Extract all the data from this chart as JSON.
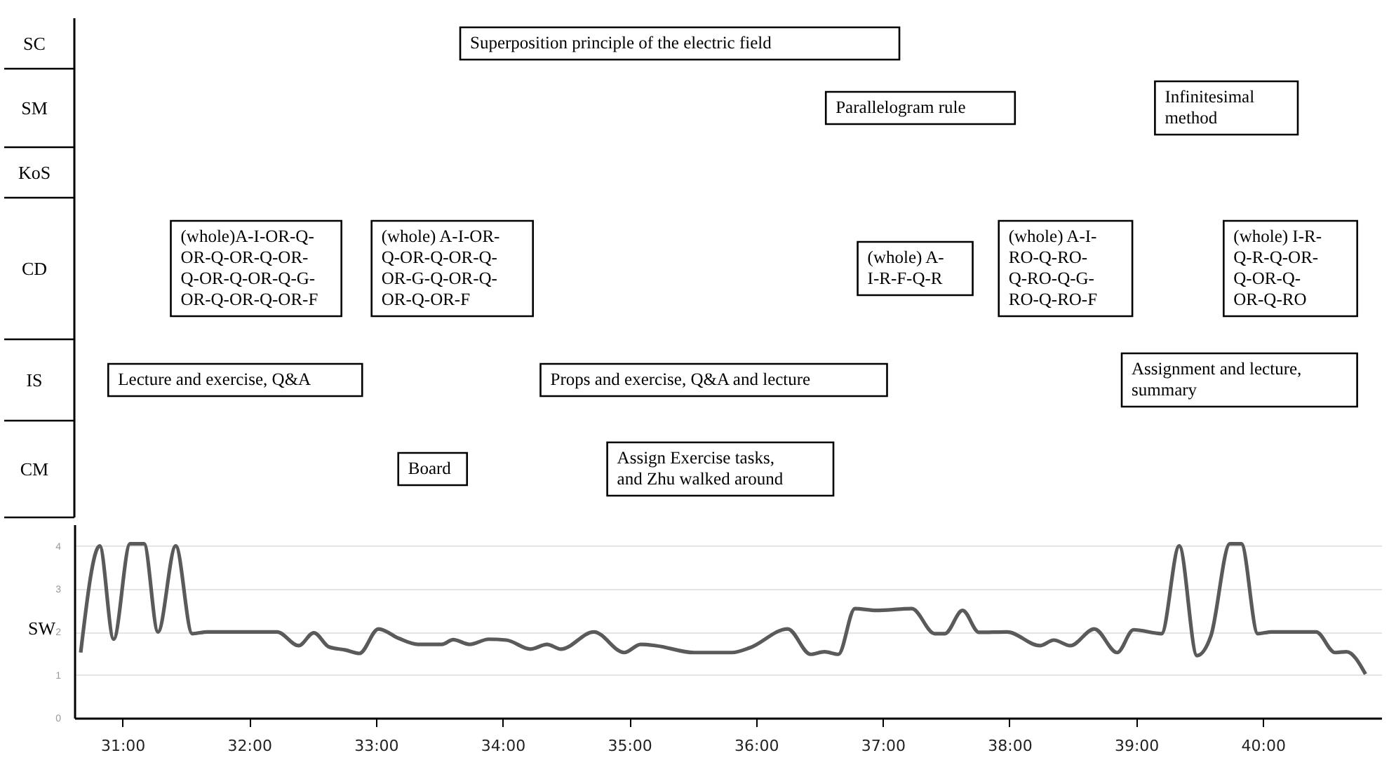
{
  "chart_data": [
    {
      "type": "other",
      "y_categories": [
        "SC",
        "SM",
        "KoS",
        "CD",
        "IS",
        "CM"
      ],
      "annotations": [
        "Superposition principle of the electric field",
        "Parallelogram rule",
        "Infinitesimal\nmethod",
        "(whole)A-I-OR-Q-\nOR-Q-OR-Q-OR-\nQ-OR-Q-OR-Q-G-\nOR-Q-OR-Q-OR-F",
        "(whole) A-I-OR-\nQ-OR-Q-OR-Q-\nOR-G-Q-OR-Q-\nOR-Q-OR-F",
        "(whole) A-\nI-R-F-Q-R",
        "(whole) A-I-\nRO-Q-RO-\nQ-RO-Q-G-\nRO-Q-RO-F",
        "(whole) I-R-\nQ-R-Q-OR-\nQ-OR-Q-\nOR-Q-RO",
        "Lecture and exercise, Q&A",
        "Props and exercise, Q&A and lecture",
        "Assignment and lecture,\nsummary",
        "Board",
        "Assign Exercise tasks,\nand Zhu walked around"
      ]
    },
    {
      "type": "line",
      "ylabel": "SW",
      "xlim": [
        30.62,
        40.94
      ],
      "ylim": [
        0,
        4.5
      ],
      "grid": "y",
      "xticks": [
        {
          "value": 31,
          "label": "31:00"
        },
        {
          "value": 32,
          "label": "32:00"
        },
        {
          "value": 33,
          "label": "33:00"
        },
        {
          "value": 34,
          "label": "34:00"
        },
        {
          "value": 35,
          "label": "35:00"
        },
        {
          "value": 36,
          "label": "36:00"
        },
        {
          "value": 37,
          "label": "37:00"
        },
        {
          "value": 38,
          "label": "38:00"
        },
        {
          "value": 39,
          "label": "39:00"
        },
        {
          "value": 40,
          "label": "40:00"
        }
      ],
      "yticks": [
        0,
        1,
        2,
        3,
        4
      ],
      "x": [
        30.67,
        30.82,
        30.93,
        31.06,
        31.17,
        31.28,
        31.42,
        31.55,
        31.67,
        32.22,
        32.39,
        32.51,
        32.63,
        32.76,
        32.87,
        33.02,
        33.18,
        33.33,
        33.52,
        33.61,
        33.74,
        33.89,
        34.03,
        34.22,
        34.35,
        34.46,
        34.72,
        34.96,
        35.09,
        35.21,
        35.51,
        35.81,
        35.95,
        36.25,
        36.43,
        36.54,
        36.65,
        36.78,
        36.95,
        37.23,
        37.41,
        37.49,
        37.63,
        37.76,
        37.98,
        38.24,
        38.35,
        38.48,
        38.67,
        38.85,
        38.98,
        39.2,
        39.34,
        39.48,
        39.59,
        39.74,
        39.83,
        39.96,
        40.07,
        40.42,
        40.57,
        40.66,
        40.81
      ],
      "series": [
        {
          "color": "#5a5a5a",
          "values": [
            1.52,
            4.0,
            1.83,
            4.05,
            4.05,
            2.0,
            4.0,
            1.96,
            2.0,
            2.0,
            1.68,
            1.98,
            1.65,
            1.58,
            1.5,
            2.07,
            1.85,
            1.71,
            1.71,
            1.82,
            1.71,
            1.83,
            1.81,
            1.6,
            1.71,
            1.6,
            2.0,
            1.52,
            1.71,
            1.68,
            1.52,
            1.52,
            1.63,
            2.07,
            1.48,
            1.54,
            1.48,
            2.54,
            2.5,
            2.54,
            1.96,
            1.96,
            2.5,
            1.99,
            2.0,
            1.68,
            1.81,
            1.68,
            2.07,
            1.52,
            2.05,
            1.96,
            4.0,
            1.45,
            1.91,
            4.05,
            4.05,
            1.96,
            2.0,
            2.0,
            1.52,
            1.54,
            1.02
          ]
        }
      ]
    }
  ]
}
